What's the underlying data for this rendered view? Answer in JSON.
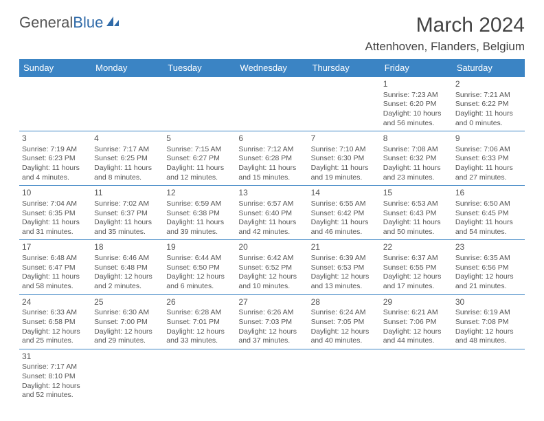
{
  "logo": {
    "part1": "General",
    "part2": "Blue"
  },
  "title": "March 2024",
  "location": "Attenhoven, Flanders, Belgium",
  "colors": {
    "header_bg": "#3b84c4",
    "header_fg": "#ffffff",
    "border": "#3b84c4",
    "text": "#555555",
    "logo_accent": "#2f6aa8"
  },
  "daynames": [
    "Sunday",
    "Monday",
    "Tuesday",
    "Wednesday",
    "Thursday",
    "Friday",
    "Saturday"
  ],
  "weeks": [
    [
      null,
      null,
      null,
      null,
      null,
      {
        "n": "1",
        "sunrise": "Sunrise: 7:23 AM",
        "sunset": "Sunset: 6:20 PM",
        "daylight": "Daylight: 10 hours and 56 minutes."
      },
      {
        "n": "2",
        "sunrise": "Sunrise: 7:21 AM",
        "sunset": "Sunset: 6:22 PM",
        "daylight": "Daylight: 11 hours and 0 minutes."
      }
    ],
    [
      {
        "n": "3",
        "sunrise": "Sunrise: 7:19 AM",
        "sunset": "Sunset: 6:23 PM",
        "daylight": "Daylight: 11 hours and 4 minutes."
      },
      {
        "n": "4",
        "sunrise": "Sunrise: 7:17 AM",
        "sunset": "Sunset: 6:25 PM",
        "daylight": "Daylight: 11 hours and 8 minutes."
      },
      {
        "n": "5",
        "sunrise": "Sunrise: 7:15 AM",
        "sunset": "Sunset: 6:27 PM",
        "daylight": "Daylight: 11 hours and 12 minutes."
      },
      {
        "n": "6",
        "sunrise": "Sunrise: 7:12 AM",
        "sunset": "Sunset: 6:28 PM",
        "daylight": "Daylight: 11 hours and 15 minutes."
      },
      {
        "n": "7",
        "sunrise": "Sunrise: 7:10 AM",
        "sunset": "Sunset: 6:30 PM",
        "daylight": "Daylight: 11 hours and 19 minutes."
      },
      {
        "n": "8",
        "sunrise": "Sunrise: 7:08 AM",
        "sunset": "Sunset: 6:32 PM",
        "daylight": "Daylight: 11 hours and 23 minutes."
      },
      {
        "n": "9",
        "sunrise": "Sunrise: 7:06 AM",
        "sunset": "Sunset: 6:33 PM",
        "daylight": "Daylight: 11 hours and 27 minutes."
      }
    ],
    [
      {
        "n": "10",
        "sunrise": "Sunrise: 7:04 AM",
        "sunset": "Sunset: 6:35 PM",
        "daylight": "Daylight: 11 hours and 31 minutes."
      },
      {
        "n": "11",
        "sunrise": "Sunrise: 7:02 AM",
        "sunset": "Sunset: 6:37 PM",
        "daylight": "Daylight: 11 hours and 35 minutes."
      },
      {
        "n": "12",
        "sunrise": "Sunrise: 6:59 AM",
        "sunset": "Sunset: 6:38 PM",
        "daylight": "Daylight: 11 hours and 39 minutes."
      },
      {
        "n": "13",
        "sunrise": "Sunrise: 6:57 AM",
        "sunset": "Sunset: 6:40 PM",
        "daylight": "Daylight: 11 hours and 42 minutes."
      },
      {
        "n": "14",
        "sunrise": "Sunrise: 6:55 AM",
        "sunset": "Sunset: 6:42 PM",
        "daylight": "Daylight: 11 hours and 46 minutes."
      },
      {
        "n": "15",
        "sunrise": "Sunrise: 6:53 AM",
        "sunset": "Sunset: 6:43 PM",
        "daylight": "Daylight: 11 hours and 50 minutes."
      },
      {
        "n": "16",
        "sunrise": "Sunrise: 6:50 AM",
        "sunset": "Sunset: 6:45 PM",
        "daylight": "Daylight: 11 hours and 54 minutes."
      }
    ],
    [
      {
        "n": "17",
        "sunrise": "Sunrise: 6:48 AM",
        "sunset": "Sunset: 6:47 PM",
        "daylight": "Daylight: 11 hours and 58 minutes."
      },
      {
        "n": "18",
        "sunrise": "Sunrise: 6:46 AM",
        "sunset": "Sunset: 6:48 PM",
        "daylight": "Daylight: 12 hours and 2 minutes."
      },
      {
        "n": "19",
        "sunrise": "Sunrise: 6:44 AM",
        "sunset": "Sunset: 6:50 PM",
        "daylight": "Daylight: 12 hours and 6 minutes."
      },
      {
        "n": "20",
        "sunrise": "Sunrise: 6:42 AM",
        "sunset": "Sunset: 6:52 PM",
        "daylight": "Daylight: 12 hours and 10 minutes."
      },
      {
        "n": "21",
        "sunrise": "Sunrise: 6:39 AM",
        "sunset": "Sunset: 6:53 PM",
        "daylight": "Daylight: 12 hours and 13 minutes."
      },
      {
        "n": "22",
        "sunrise": "Sunrise: 6:37 AM",
        "sunset": "Sunset: 6:55 PM",
        "daylight": "Daylight: 12 hours and 17 minutes."
      },
      {
        "n": "23",
        "sunrise": "Sunrise: 6:35 AM",
        "sunset": "Sunset: 6:56 PM",
        "daylight": "Daylight: 12 hours and 21 minutes."
      }
    ],
    [
      {
        "n": "24",
        "sunrise": "Sunrise: 6:33 AM",
        "sunset": "Sunset: 6:58 PM",
        "daylight": "Daylight: 12 hours and 25 minutes."
      },
      {
        "n": "25",
        "sunrise": "Sunrise: 6:30 AM",
        "sunset": "Sunset: 7:00 PM",
        "daylight": "Daylight: 12 hours and 29 minutes."
      },
      {
        "n": "26",
        "sunrise": "Sunrise: 6:28 AM",
        "sunset": "Sunset: 7:01 PM",
        "daylight": "Daylight: 12 hours and 33 minutes."
      },
      {
        "n": "27",
        "sunrise": "Sunrise: 6:26 AM",
        "sunset": "Sunset: 7:03 PM",
        "daylight": "Daylight: 12 hours and 37 minutes."
      },
      {
        "n": "28",
        "sunrise": "Sunrise: 6:24 AM",
        "sunset": "Sunset: 7:05 PM",
        "daylight": "Daylight: 12 hours and 40 minutes."
      },
      {
        "n": "29",
        "sunrise": "Sunrise: 6:21 AM",
        "sunset": "Sunset: 7:06 PM",
        "daylight": "Daylight: 12 hours and 44 minutes."
      },
      {
        "n": "30",
        "sunrise": "Sunrise: 6:19 AM",
        "sunset": "Sunset: 7:08 PM",
        "daylight": "Daylight: 12 hours and 48 minutes."
      }
    ],
    [
      {
        "n": "31",
        "sunrise": "Sunrise: 7:17 AM",
        "sunset": "Sunset: 8:10 PM",
        "daylight": "Daylight: 12 hours and 52 minutes."
      },
      null,
      null,
      null,
      null,
      null,
      null
    ]
  ]
}
